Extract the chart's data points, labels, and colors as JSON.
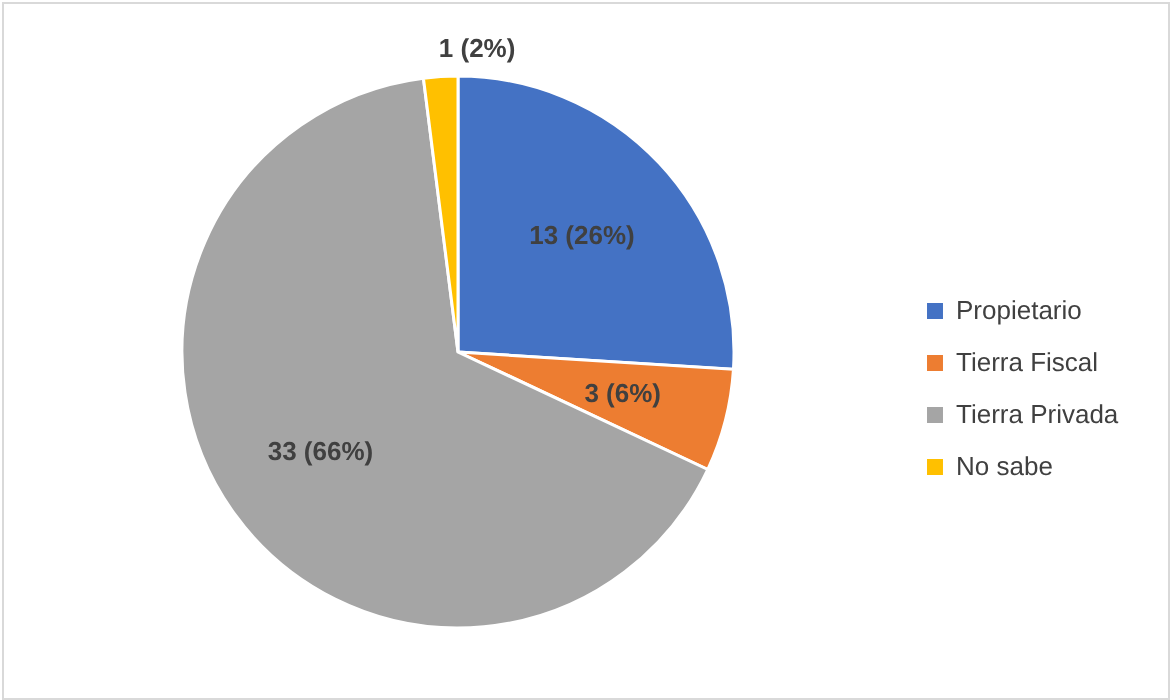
{
  "chart_data": {
    "type": "pie",
    "categories": [
      "Propietario",
      "Tierra Fiscal",
      "Tierra Privada",
      "No sabe"
    ],
    "values": [
      13,
      3,
      33,
      1
    ],
    "colors": [
      "#4472c4",
      "#ed7d31",
      "#a5a5a5",
      "#ffc000"
    ],
    "value_labels": [
      "13 (26%)",
      "3 (6%)",
      "33 (66%)",
      "1 (2%)"
    ],
    "legend": "right"
  }
}
